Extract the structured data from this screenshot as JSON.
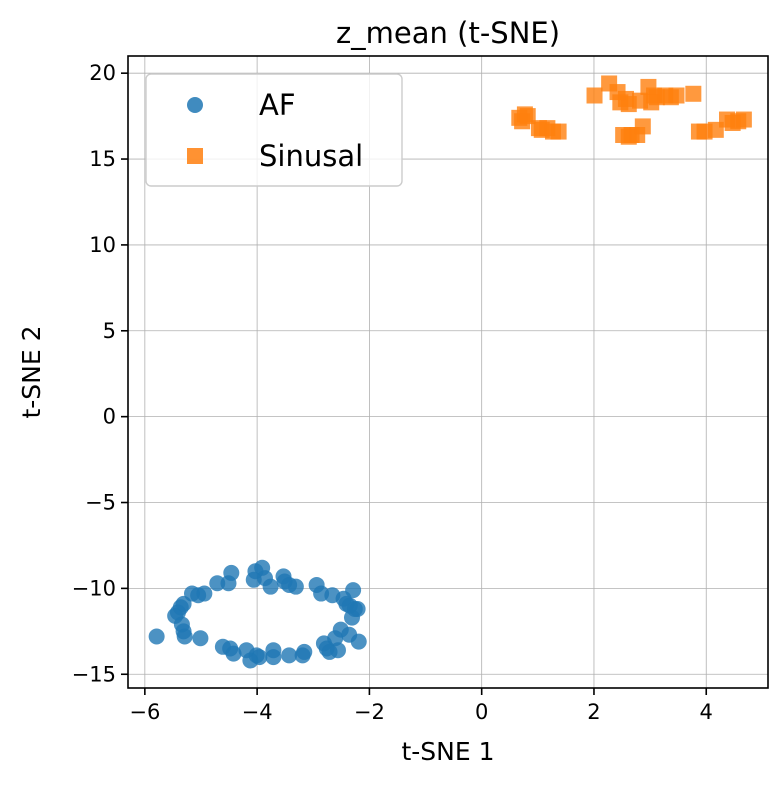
{
  "chart_data": {
    "type": "scatter",
    "title": "z_mean (t-SNE)",
    "xlabel": "t-SNE 1",
    "ylabel": "t-SNE 2",
    "xlim": [
      -6.3,
      5.1
    ],
    "ylim": [
      -15.8,
      21.0
    ],
    "xticks": [
      -6,
      -4,
      -2,
      0,
      2,
      4
    ],
    "xtick_labels": [
      "−6",
      "−4",
      "−2",
      "0",
      "2",
      "4"
    ],
    "yticks": [
      -15,
      -10,
      -5,
      0,
      5,
      10,
      15,
      20
    ],
    "ytick_labels": [
      "−15",
      "−10",
      "−5",
      "0",
      "5",
      "10",
      "15",
      "20"
    ],
    "grid": true,
    "legend_position": "top-left",
    "series": [
      {
        "name": "AF",
        "marker": "circle",
        "color": "#1f77b4",
        "points": [
          [
            -5.79,
            -12.8
          ],
          [
            -5.46,
            -11.6
          ],
          [
            -5.41,
            -11.4
          ],
          [
            -5.36,
            -11.1
          ],
          [
            -5.31,
            -10.9
          ],
          [
            -5.34,
            -12.1
          ],
          [
            -5.31,
            -12.5
          ],
          [
            -5.29,
            -12.8
          ],
          [
            -5.16,
            -10.3
          ],
          [
            -5.05,
            -10.4
          ],
          [
            -5.01,
            -12.9
          ],
          [
            -4.94,
            -10.3
          ],
          [
            -4.71,
            -9.7
          ],
          [
            -4.51,
            -9.7
          ],
          [
            -4.61,
            -13.4
          ],
          [
            -4.48,
            -13.5
          ],
          [
            -4.42,
            -13.8
          ],
          [
            -4.46,
            -9.1
          ],
          [
            -4.19,
            -13.6
          ],
          [
            -4.12,
            -14.2
          ],
          [
            -4.06,
            -9.5
          ],
          [
            -4.03,
            -9.0
          ],
          [
            -4.01,
            -13.9
          ],
          [
            -3.96,
            -14.0
          ],
          [
            -3.91,
            -8.8
          ],
          [
            -3.86,
            -9.4
          ],
          [
            -3.76,
            -9.9
          ],
          [
            -3.71,
            -13.6
          ],
          [
            -3.71,
            -14.0
          ],
          [
            -3.53,
            -9.3
          ],
          [
            -3.51,
            -9.6
          ],
          [
            -3.43,
            -9.8
          ],
          [
            -3.43,
            -13.9
          ],
          [
            -3.31,
            -9.9
          ],
          [
            -3.19,
            -13.9
          ],
          [
            -3.16,
            -13.7
          ],
          [
            -2.94,
            -9.8
          ],
          [
            -2.86,
            -10.3
          ],
          [
            -2.81,
            -13.2
          ],
          [
            -2.76,
            -13.5
          ],
          [
            -2.71,
            -13.7
          ],
          [
            -2.66,
            -10.4
          ],
          [
            -2.61,
            -12.9
          ],
          [
            -2.56,
            -13.6
          ],
          [
            -2.51,
            -12.4
          ],
          [
            -2.46,
            -10.6
          ],
          [
            -2.41,
            -10.9
          ],
          [
            -2.36,
            -12.7
          ],
          [
            -2.31,
            -11.7
          ],
          [
            -2.29,
            -10.1
          ],
          [
            -2.26,
            -11.2
          ],
          [
            -2.21,
            -11.2
          ],
          [
            -2.19,
            -13.1
          ],
          [
            -2.35,
            -11.0
          ]
        ]
      },
      {
        "name": "Sinusal",
        "marker": "square",
        "color": "#ff7f0e",
        "points": [
          [
            0.67,
            17.4
          ],
          [
            0.72,
            17.2
          ],
          [
            0.77,
            17.6
          ],
          [
            0.82,
            17.5
          ],
          [
            1.02,
            16.8
          ],
          [
            1.07,
            16.7
          ],
          [
            1.17,
            16.8
          ],
          [
            1.27,
            16.6
          ],
          [
            1.37,
            16.6
          ],
          [
            2.01,
            18.7
          ],
          [
            2.27,
            19.4
          ],
          [
            2.42,
            18.9
          ],
          [
            2.47,
            18.3
          ],
          [
            2.57,
            18.5
          ],
          [
            2.62,
            18.2
          ],
          [
            2.52,
            16.4
          ],
          [
            2.62,
            16.3
          ],
          [
            2.67,
            16.4
          ],
          [
            2.77,
            16.4
          ],
          [
            2.82,
            18.4
          ],
          [
            2.87,
            16.9
          ],
          [
            2.97,
            19.2
          ],
          [
            3.07,
            18.7
          ],
          [
            3.02,
            18.3
          ],
          [
            3.12,
            18.6
          ],
          [
            3.27,
            18.7
          ],
          [
            3.37,
            18.6
          ],
          [
            3.47,
            18.7
          ],
          [
            3.77,
            18.8
          ],
          [
            3.87,
            16.6
          ],
          [
            3.97,
            16.6
          ],
          [
            4.17,
            16.7
          ],
          [
            4.37,
            17.3
          ],
          [
            4.47,
            17.1
          ],
          [
            4.57,
            17.2
          ],
          [
            4.67,
            17.3
          ]
        ]
      }
    ]
  }
}
